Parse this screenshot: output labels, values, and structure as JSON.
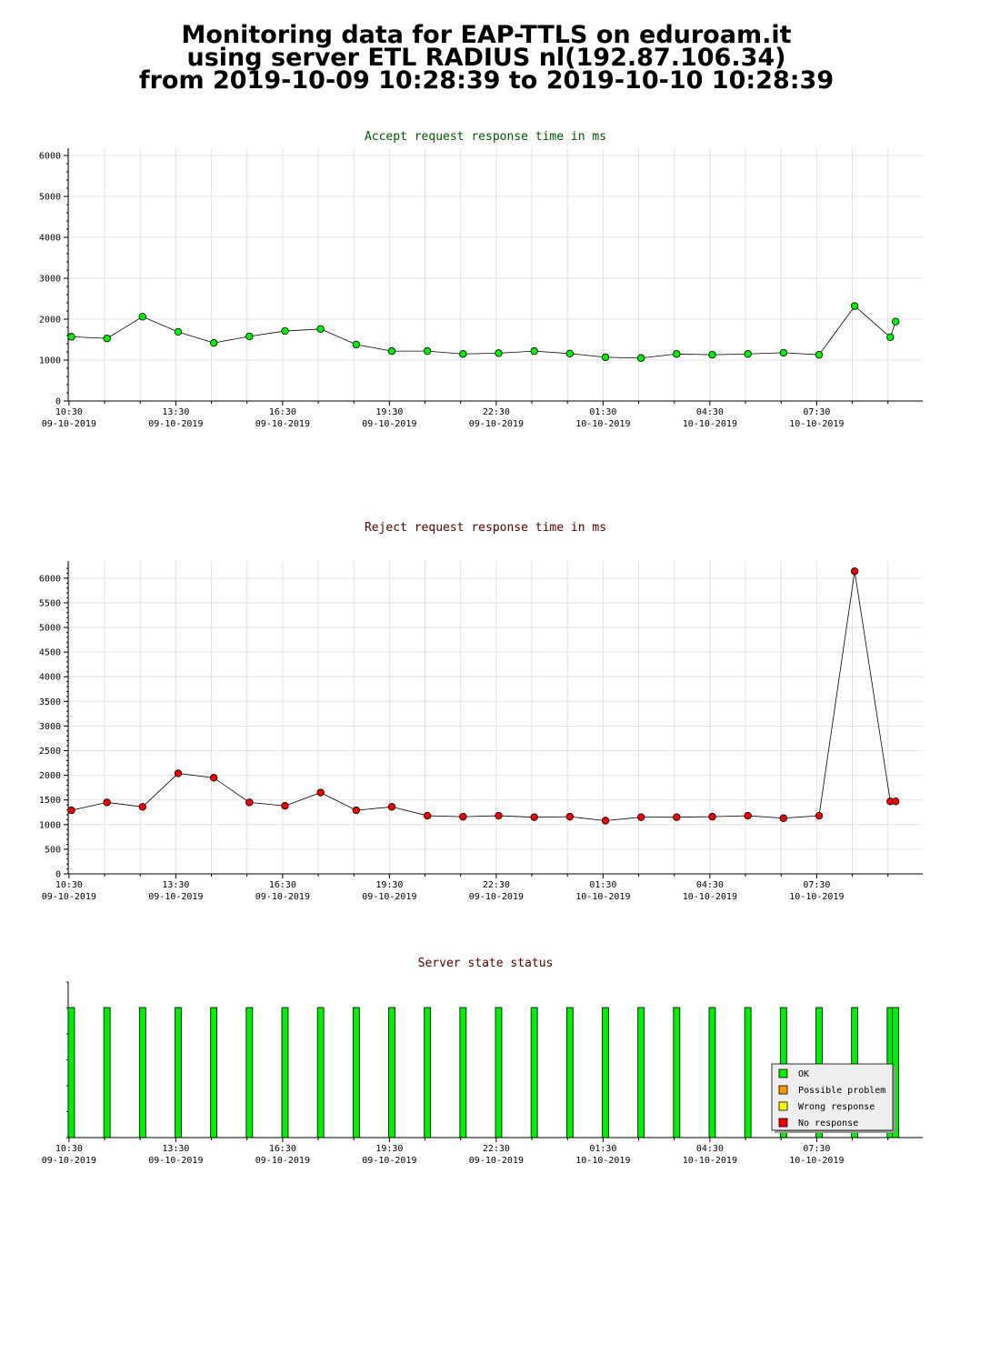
{
  "header": {
    "line1": "Monitoring data for EAP-TTLS on eduroam.it",
    "line2": "using server ETL RADIUS nl(192.87.106.34)",
    "line3": "from 2019-10-09 10:28:39 to 2019-10-10 10:28:39"
  },
  "x_axis_labels": [
    {
      "time": "10:30",
      "date": "09-10-2019"
    },
    {
      "time": "13:30",
      "date": "09-10-2019"
    },
    {
      "time": "16:30",
      "date": "09-10-2019"
    },
    {
      "time": "19:30",
      "date": "09-10-2019"
    },
    {
      "time": "22:30",
      "date": "09-10-2019"
    },
    {
      "time": "01:30",
      "date": "10-10-2019"
    },
    {
      "time": "04:30",
      "date": "10-10-2019"
    },
    {
      "time": "07:30",
      "date": "10-10-2019"
    }
  ],
  "chart_data": [
    {
      "type": "line",
      "title": "Accept request response time in ms",
      "title_color": "#005500",
      "marker_color": "#00ee00",
      "xlim": [
        "2019-10-09 10:28:39",
        "2019-10-10 10:28:39"
      ],
      "ylim": [
        0,
        6000
      ],
      "yticks": [
        0,
        1000,
        2000,
        3000,
        4000,
        5000,
        6000
      ],
      "grid": true,
      "x": [
        "2019-10-09 10:34",
        "2019-10-09 11:34",
        "2019-10-09 12:34",
        "2019-10-09 13:34",
        "2019-10-09 14:34",
        "2019-10-09 15:34",
        "2019-10-09 16:34",
        "2019-10-09 17:34",
        "2019-10-09 18:34",
        "2019-10-09 19:34",
        "2019-10-09 20:34",
        "2019-10-09 21:34",
        "2019-10-09 22:34",
        "2019-10-09 23:34",
        "2019-10-10 00:34",
        "2019-10-10 01:34",
        "2019-10-10 02:34",
        "2019-10-10 03:34",
        "2019-10-10 04:34",
        "2019-10-10 05:34",
        "2019-10-10 06:34",
        "2019-10-10 07:34",
        "2019-10-10 08:34",
        "2019-10-10 09:34",
        "2019-10-10 09:43"
      ],
      "values": [
        1570,
        1530,
        2060,
        1690,
        1420,
        1580,
        1710,
        1760,
        1380,
        1220,
        1220,
        1150,
        1170,
        1220,
        1160,
        1070,
        1050,
        1150,
        1130,
        1150,
        1180,
        1130,
        2320,
        1560,
        1940
      ]
    },
    {
      "type": "line",
      "title": "Reject request response time in ms",
      "title_color": "#550000",
      "marker_color": "#ee0000",
      "xlim": [
        "2019-10-09 10:28:39",
        "2019-10-10 10:28:39"
      ],
      "ylim": [
        0,
        6200
      ],
      "yticks": [
        0,
        500,
        1000,
        1500,
        2000,
        2500,
        3000,
        3500,
        4000,
        4500,
        5000,
        5500,
        6000
      ],
      "grid": true,
      "x": [
        "2019-10-09 10:34",
        "2019-10-09 11:34",
        "2019-10-09 12:34",
        "2019-10-09 13:34",
        "2019-10-09 14:34",
        "2019-10-09 15:34",
        "2019-10-09 16:34",
        "2019-10-09 17:34",
        "2019-10-09 18:34",
        "2019-10-09 19:34",
        "2019-10-09 20:34",
        "2019-10-09 21:34",
        "2019-10-09 22:34",
        "2019-10-09 23:34",
        "2019-10-10 00:34",
        "2019-10-10 01:34",
        "2019-10-10 02:34",
        "2019-10-10 03:34",
        "2019-10-10 04:34",
        "2019-10-10 05:34",
        "2019-10-10 06:34",
        "2019-10-10 07:34",
        "2019-10-10 08:34",
        "2019-10-10 09:34",
        "2019-10-10 09:43"
      ],
      "values": [
        1290,
        1450,
        1360,
        2040,
        1950,
        1450,
        1380,
        1650,
        1290,
        1360,
        1180,
        1160,
        1180,
        1150,
        1160,
        1080,
        1150,
        1150,
        1160,
        1180,
        1130,
        1180,
        6140,
        1470,
        1470
      ]
    },
    {
      "type": "bar",
      "title": "Server state status",
      "title_color": "#550000",
      "xlim": [
        "2019-10-09 10:28:39",
        "2019-10-10 10:28:39"
      ],
      "x": [
        "2019-10-09 10:34",
        "2019-10-09 11:34",
        "2019-10-09 12:34",
        "2019-10-09 13:34",
        "2019-10-09 14:34",
        "2019-10-09 15:34",
        "2019-10-09 16:34",
        "2019-10-09 17:34",
        "2019-10-09 18:34",
        "2019-10-09 19:34",
        "2019-10-09 20:34",
        "2019-10-09 21:34",
        "2019-10-09 22:34",
        "2019-10-09 23:34",
        "2019-10-10 00:34",
        "2019-10-10 01:34",
        "2019-10-10 02:34",
        "2019-10-10 03:34",
        "2019-10-10 04:34",
        "2019-10-10 05:34",
        "2019-10-10 06:34",
        "2019-10-10 07:34",
        "2019-10-10 08:34",
        "2019-10-10 09:34",
        "2019-10-10 09:43"
      ],
      "states": [
        "OK",
        "OK",
        "OK",
        "OK",
        "OK",
        "OK",
        "OK",
        "OK",
        "OK",
        "OK",
        "OK",
        "OK",
        "OK",
        "OK",
        "OK",
        "OK",
        "OK",
        "OK",
        "OK",
        "OK",
        "OK",
        "OK",
        "OK",
        "OK",
        "OK"
      ],
      "legend_position": "bottom-right",
      "legend": [
        {
          "label": "OK",
          "color": "#00ee00"
        },
        {
          "label": "Possible problem",
          "color": "#ff9900"
        },
        {
          "label": "Wrong response",
          "color": "#ffff00"
        },
        {
          "label": "No response",
          "color": "#ee0000"
        }
      ]
    }
  ]
}
